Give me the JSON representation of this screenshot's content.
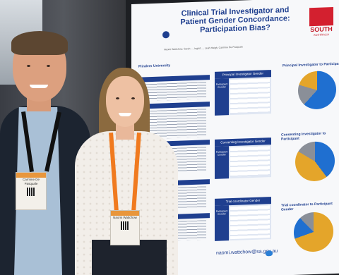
{
  "poster": {
    "title": "Clinical Trial Investigator and Patient Gender Concordance: Participation Bias?",
    "authors": "Naomi Wattchow, Sarah ..., Ingrid ..., Leah Haigh, Carmine De Pasquale",
    "university": "Flinders University",
    "partner_logo": "SOUTH",
    "partner_logo_sub": "AUSTRALIA",
    "chart_captions": [
      "Principal Investigator to Participant",
      "Consenting Investigator to Participant",
      "Trial coordinator to Participant Gender"
    ],
    "table_headers": [
      "Principal Investigator Gender",
      "Consenting Investigator Gender",
      "Trial coordinator Gender"
    ],
    "side_label": "Participant Gender",
    "contact_email": "naomi.wattchow@sa.gov.au"
  },
  "badges": {
    "man_name": "Carmine De Pasquale",
    "woman_name": "Naomi Wattchow"
  },
  "colors": {
    "poster_blue": "#1f3f8f",
    "pie_blue": "#1f6fd0",
    "pie_gold": "#e4a52a",
    "pie_grey": "#8a8f98",
    "lanyard_orange": "#f07a1f",
    "sa_red": "#d3202f"
  },
  "icons": {
    "logo": "flinders-logo-icon",
    "sa": "south-australia-logo-icon",
    "twitter": "twitter-icon"
  }
}
